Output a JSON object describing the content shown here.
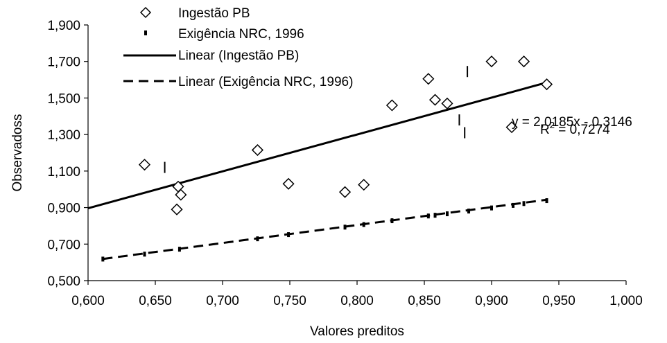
{
  "chart_data": {
    "type": "scatter",
    "xlabel": "Valores preditos",
    "ylabel": "Observadoss",
    "xlim": [
      0.6,
      1.0
    ],
    "ylim": [
      0.5,
      1.9
    ],
    "xticks": [
      "0,600",
      "0,650",
      "0,700",
      "0,750",
      "0,800",
      "0,850",
      "0,900",
      "0,950",
      "1,000"
    ],
    "yticks": [
      "0,500",
      "0,700",
      "0,900",
      "1,100",
      "1,300",
      "1,500",
      "1,700",
      "1,900"
    ],
    "grid": false,
    "legend_position": "top-left",
    "series": [
      {
        "name": "Ingestão PB",
        "marker": "diamond",
        "points": [
          [
            0.642,
            1.135
          ],
          [
            0.667,
            1.015
          ],
          [
            0.669,
            0.97
          ],
          [
            0.666,
            0.89
          ],
          [
            0.726,
            1.215
          ],
          [
            0.749,
            1.03
          ],
          [
            0.791,
            0.985
          ],
          [
            0.805,
            1.025
          ],
          [
            0.826,
            1.46
          ],
          [
            0.853,
            1.605
          ],
          [
            0.858,
            1.49
          ],
          [
            0.867,
            1.47
          ],
          [
            0.9,
            1.7
          ],
          [
            0.924,
            1.7
          ],
          [
            0.915,
            1.34
          ],
          [
            0.941,
            1.575
          ]
        ]
      },
      {
        "name": "Exigência NRC, 1996",
        "marker": "dash",
        "points": [
          [
            0.611,
            0.618
          ],
          [
            0.642,
            0.645
          ],
          [
            0.668,
            0.672
          ],
          [
            0.726,
            0.729
          ],
          [
            0.749,
            0.752
          ],
          [
            0.791,
            0.793
          ],
          [
            0.805,
            0.807
          ],
          [
            0.826,
            0.828
          ],
          [
            0.853,
            0.854
          ],
          [
            0.858,
            0.858
          ],
          [
            0.867,
            0.866
          ],
          [
            0.883,
            0.881
          ],
          [
            0.9,
            0.898
          ],
          [
            0.916,
            0.912
          ],
          [
            0.924,
            0.922
          ],
          [
            0.941,
            0.938
          ]
        ],
        "outliers": [
          [
            0.657,
            1.12
          ],
          [
            0.882,
            1.645
          ],
          [
            0.876,
            1.38
          ],
          [
            0.88,
            1.31
          ]
        ]
      }
    ],
    "trendlines": [
      {
        "name": "Linear (Ingestão PB)",
        "style": "solid",
        "x": [
          0.6,
          0.941
        ],
        "slope": 2.0185,
        "intercept": -0.3146
      },
      {
        "name": "Linear (Exigência NRC, 1996)",
        "style": "dashed",
        "x": [
          0.611,
          0.941
        ],
        "slope": 0.983,
        "intercept": 0.018
      }
    ],
    "annotations": {
      "equation": "y = 2,0185x - 0,3146",
      "r2_prefix": "R",
      "r2_sup": "2",
      "r2_value": " = 0,7274"
    },
    "colors": {
      "ink": "#000000",
      "background": "#ffffff"
    }
  }
}
